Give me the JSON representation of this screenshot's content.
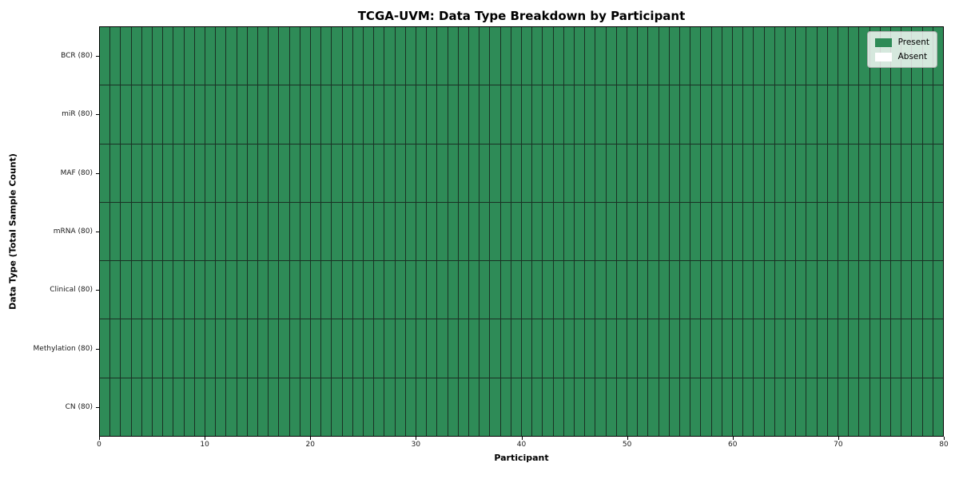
{
  "chart_data": {
    "type": "heatmap",
    "title": "TCGA-UVM: Data Type Breakdown by Participant",
    "xlabel": "Participant",
    "ylabel": "Data Type (Total Sample Count)",
    "x_axis": {
      "min": 0,
      "max": 80,
      "ticks": [
        0,
        10,
        20,
        30,
        40,
        50,
        60,
        70,
        80
      ]
    },
    "n_participants": 80,
    "rows": [
      {
        "data_type": "BCR",
        "label": "BCR (80)",
        "total_samples": 80,
        "present_count": 80,
        "absent_count": 0
      },
      {
        "data_type": "miR",
        "label": "miR (80)",
        "total_samples": 80,
        "present_count": 80,
        "absent_count": 0
      },
      {
        "data_type": "MAF",
        "label": "MAF (80)",
        "total_samples": 80,
        "present_count": 80,
        "absent_count": 0
      },
      {
        "data_type": "mRNA",
        "label": "mRNA (80)",
        "total_samples": 80,
        "present_count": 80,
        "absent_count": 0
      },
      {
        "data_type": "Clinical",
        "label": "Clinical (80)",
        "total_samples": 80,
        "present_count": 80,
        "absent_count": 0
      },
      {
        "data_type": "Methylation",
        "label": "Methylation (80)",
        "total_samples": 80,
        "present_count": 80,
        "absent_count": 0
      },
      {
        "data_type": "CN",
        "label": "CN (80)",
        "total_samples": 80,
        "present_count": 80,
        "absent_count": 0
      }
    ],
    "legend": [
      {
        "label": "Present",
        "key": "present"
      },
      {
        "label": "Absent",
        "key": "absent"
      }
    ],
    "colors": {
      "present": "#2E8B57",
      "absent": "#FFFFFF",
      "cell_edge": "#1A3024",
      "spine": "#000000"
    },
    "grid": true,
    "legend_position": "upper right"
  }
}
